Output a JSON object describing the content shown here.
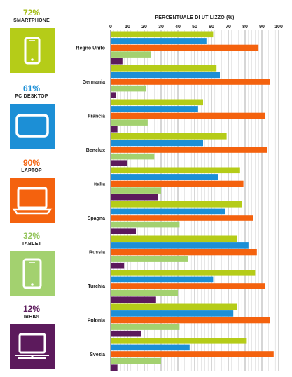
{
  "legend": [
    {
      "pct": "72%",
      "label": "SMARTPHONE",
      "color": "#b5cc18",
      "pct_color": "#a4bd14",
      "icon": "smartphone-icon"
    },
    {
      "pct": "61%",
      "label": "PC DESKTOP",
      "color": "#1c8fd6",
      "pct_color": "#1c8fd6",
      "icon": "monitor-icon"
    },
    {
      "pct": "90%",
      "label": "LAPTOP",
      "color": "#f4620e",
      "pct_color": "#f4620e",
      "icon": "laptop-icon"
    },
    {
      "pct": "32%",
      "label": "TABLET",
      "color": "#a3d16f",
      "pct_color": "#93c45a",
      "icon": "tablet-icon"
    },
    {
      "pct": "12%",
      "label": "IBRIDI",
      "color": "#5c1a5c",
      "pct_color": "#5c1a5c",
      "icon": "hybrid-device-icon"
    }
  ],
  "chart_data": {
    "type": "bar",
    "orientation": "horizontal",
    "title": "PERCENTUALE DI UTILIZZO (%)",
    "xlim": [
      0,
      100
    ],
    "ticks": [
      0,
      10,
      20,
      30,
      40,
      50,
      60,
      70,
      80,
      90,
      100
    ],
    "grid": true,
    "categories": [
      "Regno Unito",
      "Germania",
      "Francia",
      "Benelux",
      "Italia",
      "Spagna",
      "Russia",
      "Turchia",
      "Polonia",
      "Svezia"
    ],
    "series": [
      {
        "name": "SMARTPHONE",
        "color": "#b5cc18",
        "values": [
          61,
          63,
          55,
          69,
          77,
          78,
          75,
          86,
          75,
          81
        ]
      },
      {
        "name": "PC DESKTOP",
        "color": "#1c8fd6",
        "values": [
          57,
          65,
          52,
          55,
          64,
          68,
          82,
          61,
          73,
          47
        ]
      },
      {
        "name": "LAPTOP",
        "color": "#f4620e",
        "values": [
          88,
          95,
          92,
          93,
          79,
          85,
          87,
          92,
          95,
          97
        ]
      },
      {
        "name": "TABLET",
        "color": "#a3d16f",
        "values": [
          24,
          21,
          22,
          26,
          30,
          41,
          46,
          40,
          41,
          30
        ]
      },
      {
        "name": "IBRIDI",
        "color": "#5c1a5c",
        "values": [
          7,
          3,
          4,
          10,
          28,
          15,
          8,
          27,
          18,
          4
        ]
      }
    ]
  }
}
